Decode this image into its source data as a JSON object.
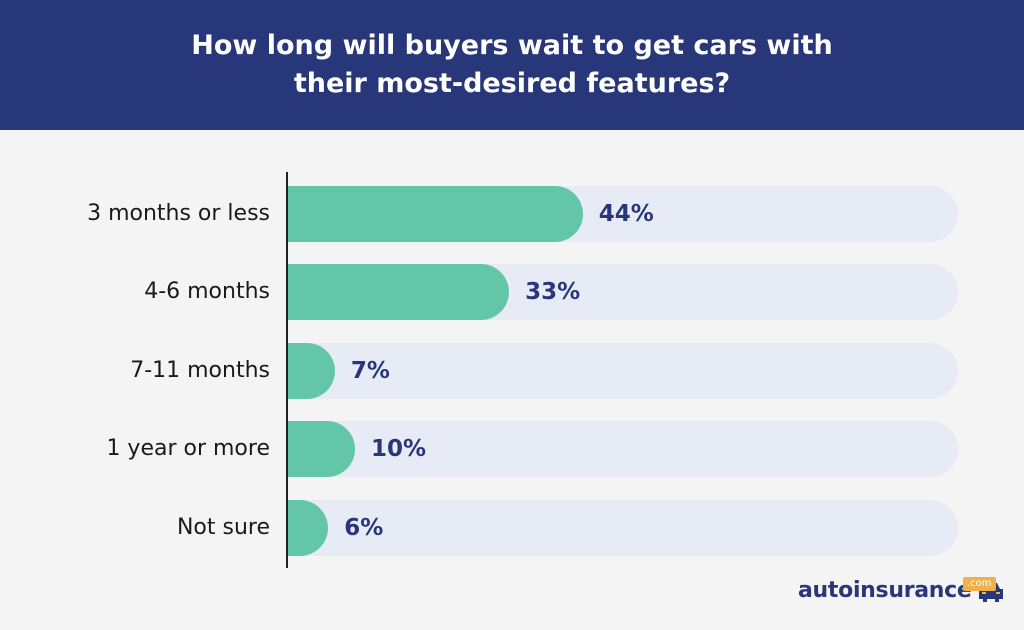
{
  "chart_data": {
    "type": "bar",
    "orientation": "horizontal",
    "title": "How long will buyers wait to get cars with their most-desired features?",
    "categories": [
      "3 months or less",
      "4-6 months",
      "7-11 months",
      "1 year or more",
      "Not sure"
    ],
    "values": [
      44,
      33,
      7,
      10,
      6
    ],
    "value_labels": [
      "44%",
      "33%",
      "7%",
      "10%",
      "6%"
    ],
    "xlim": [
      0,
      100
    ],
    "grid": false,
    "colors": {
      "bar": "#63c6a6",
      "track": "#e7ebf5",
      "header": "#28367a",
      "value_text": "#28367a"
    }
  },
  "logo": {
    "text": "autoinsurance",
    "badge": ".com"
  }
}
